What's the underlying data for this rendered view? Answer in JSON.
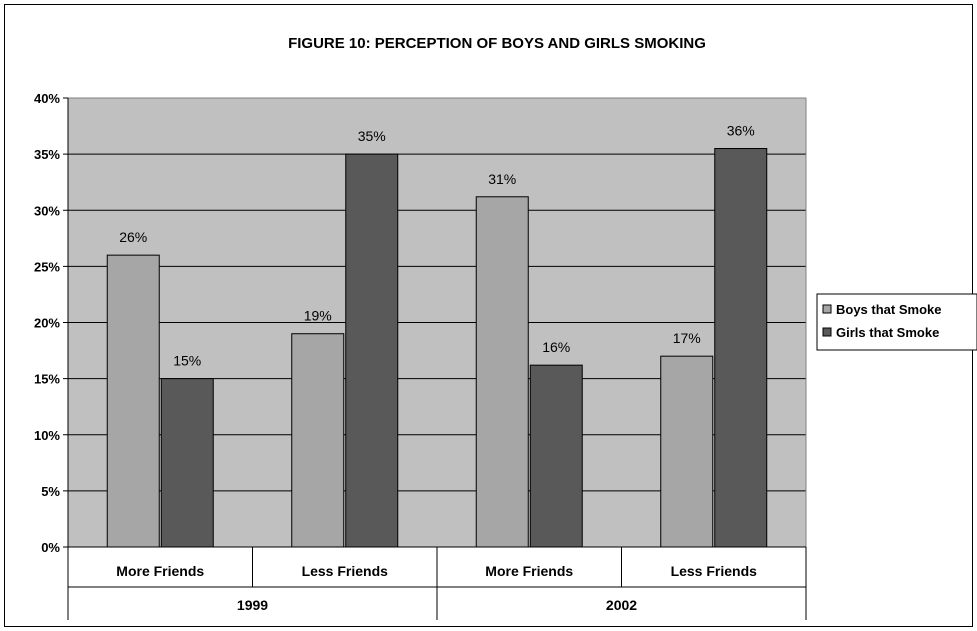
{
  "chart_data": {
    "type": "bar",
    "title": "FIGURE 10: PERCEPTION OF BOYS AND GIRLS SMOKING",
    "categories": [
      "More Friends",
      "Less Friends",
      "More Friends",
      "Less Friends"
    ],
    "groups": [
      {
        "label": "1999",
        "span": [
          0,
          1
        ]
      },
      {
        "label": "2002",
        "span": [
          2,
          3
        ]
      }
    ],
    "series": [
      {
        "name": "Boys that Smoke",
        "color": "#a6a6a6",
        "values": [
          26,
          19,
          31.2,
          17
        ],
        "labels": [
          "26%",
          "19%",
          "31%",
          "17%"
        ]
      },
      {
        "name": "Girls that Smoke",
        "color": "#595959",
        "values": [
          15,
          35,
          16.2,
          35.5
        ],
        "labels": [
          "15%",
          "35%",
          "16%",
          "36%"
        ]
      }
    ],
    "ylim": [
      0,
      40
    ],
    "yticks": [
      0,
      5,
      10,
      15,
      20,
      25,
      30,
      35,
      40
    ],
    "ytick_labels": [
      "0%",
      "5%",
      "10%",
      "15%",
      "20%",
      "25%",
      "30%",
      "35%",
      "40%"
    ],
    "xlabel": "",
    "ylabel": "",
    "grid": true,
    "plot_background": "#c0c0c0",
    "legend_position": "right"
  }
}
